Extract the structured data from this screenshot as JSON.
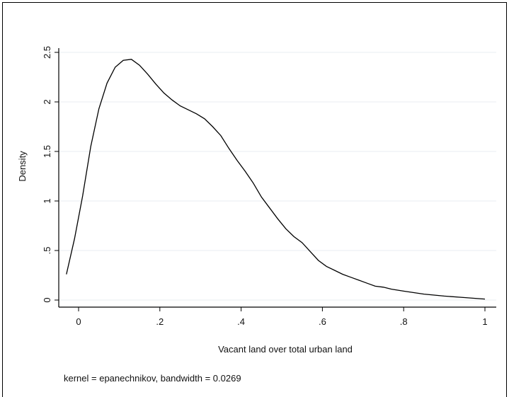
{
  "chart_data": {
    "type": "line",
    "xlabel": "Vacant land over total urban land",
    "ylabel": "Density",
    "note": "kernel = epanechnikov, bandwidth = 0.0269",
    "xlim": [
      -0.04,
      1.02
    ],
    "ylim": [
      0,
      2.5
    ],
    "xticks": [
      0,
      0.2,
      0.4,
      0.6,
      0.8,
      1
    ],
    "xtick_labels": [
      "0",
      ".2",
      ".4",
      ".6",
      ".8",
      "1"
    ],
    "yticks": [
      0,
      0.5,
      1,
      1.5,
      2,
      2.5
    ],
    "ytick_labels": [
      "0",
      ".5",
      "1",
      "1.5",
      "2",
      "2.5"
    ],
    "grid": true,
    "series": [
      {
        "x": [
          -0.03,
          -0.01,
          0.01,
          0.03,
          0.05,
          0.07,
          0.09,
          0.11,
          0.13,
          0.15,
          0.17,
          0.19,
          0.21,
          0.23,
          0.25,
          0.27,
          0.29,
          0.31,
          0.33,
          0.35,
          0.37,
          0.39,
          0.41,
          0.43,
          0.45,
          0.47,
          0.49,
          0.51,
          0.53,
          0.55,
          0.57,
          0.59,
          0.61,
          0.63,
          0.65,
          0.67,
          0.69,
          0.71,
          0.73,
          0.75,
          0.77,
          0.8,
          0.85,
          0.9,
          0.95,
          1.0
        ],
        "y": [
          0.26,
          0.62,
          1.05,
          1.55,
          1.93,
          2.19,
          2.35,
          2.42,
          2.43,
          2.37,
          2.28,
          2.18,
          2.09,
          2.02,
          1.96,
          1.92,
          1.88,
          1.83,
          1.75,
          1.66,
          1.53,
          1.41,
          1.3,
          1.18,
          1.04,
          0.93,
          0.82,
          0.72,
          0.64,
          0.58,
          0.49,
          0.4,
          0.34,
          0.3,
          0.26,
          0.23,
          0.2,
          0.17,
          0.14,
          0.13,
          0.11,
          0.09,
          0.06,
          0.04,
          0.025,
          0.01
        ]
      }
    ]
  }
}
